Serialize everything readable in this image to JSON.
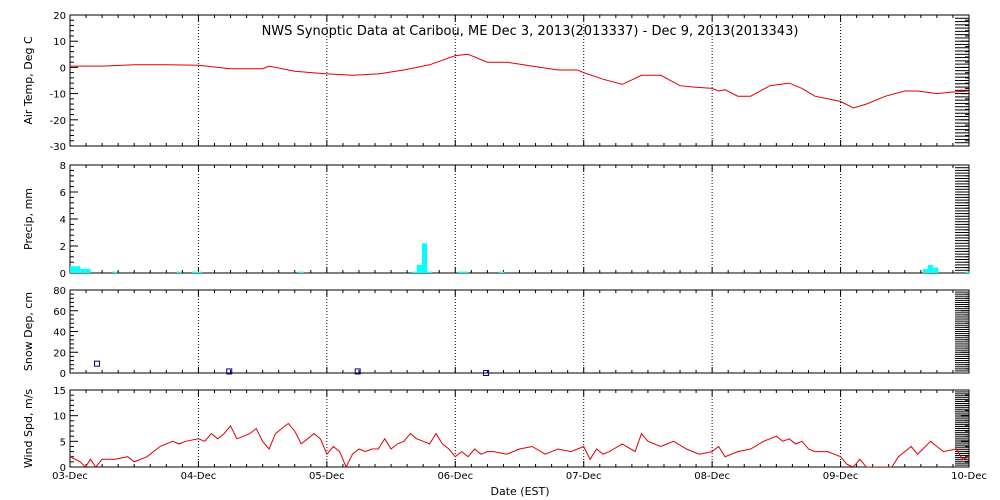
{
  "title": "NWS Synoptic Data at Caribou, ME   Dec  3, 2013(2013337) - Dec  9, 2013(2013343)",
  "xlabel": "Date (EST)",
  "x_tick_labels": [
    "03-Dec",
    "04-Dec",
    "05-Dec",
    "06-Dec",
    "07-Dec",
    "08-Dec",
    "09-Dec",
    "10-Dec"
  ],
  "colors": {
    "temperature": "#e00000",
    "precip": "#00ffff",
    "snow": "#000080",
    "wind": "#e00000",
    "frame": "#000000",
    "grid": "#000000"
  },
  "chart_data": [
    {
      "type": "line",
      "ylabel": "Air Temp, Deg C",
      "ylim": [
        -30,
        20
      ],
      "yticks": [
        -30,
        -20,
        -10,
        0,
        10,
        20
      ],
      "xlim": [
        0,
        7
      ],
      "x_unit": "days since 03-Dec 00:00 EST",
      "grid": "vertical-dotted",
      "series": [
        {
          "x": [
            0,
            0.25,
            0.5,
            0.75,
            1.0,
            1.25,
            1.5,
            1.55,
            1.75,
            1.88,
            2.0,
            2.2,
            2.4,
            2.6,
            2.8,
            3.0,
            3.1,
            3.25,
            3.4,
            3.6,
            3.8,
            3.95,
            4.0,
            4.15,
            4.3,
            4.45,
            4.6,
            4.75,
            4.85,
            5.0,
            5.05,
            5.1,
            5.2,
            5.3,
            5.45,
            5.6,
            5.7,
            5.8,
            5.9,
            6.0,
            6.1,
            6.2,
            6.35,
            6.5,
            6.6,
            6.75,
            6.85,
            7.0
          ],
          "y": [
            0.5,
            0.5,
            1,
            1,
            0.8,
            -0.5,
            -0.5,
            0.5,
            -1.5,
            -2,
            -2.5,
            -3,
            -2.5,
            -1,
            1,
            4.5,
            5,
            2,
            2,
            0.5,
            -1,
            -1,
            -2,
            -4.5,
            -6.5,
            -3,
            -3,
            -7,
            -7.5,
            -8,
            -9,
            -8.5,
            -11,
            -11,
            -7,
            -6,
            -8,
            -11,
            -12,
            -13,
            -15.5,
            -14,
            -11,
            -9,
            -9,
            -10,
            -9.5,
            -9
          ]
        }
      ]
    },
    {
      "type": "bar",
      "ylabel": "Precip, mm",
      "ylim": [
        0,
        8
      ],
      "yticks": [
        0,
        2,
        4,
        6,
        8
      ],
      "xlim": [
        0,
        7
      ],
      "x_unit": "days since 03-Dec 00:00 EST",
      "bar_width_days": 0.04,
      "grid": "vertical-dotted",
      "series": [
        {
          "x": [
            0.02,
            0.06,
            0.1,
            0.14,
            0.35,
            0.85,
            0.97,
            1.01,
            1.8,
            2.68,
            2.72,
            2.76,
            2.8,
            3.04,
            3.08,
            3.36,
            6.66,
            6.7,
            6.74,
            6.99
          ],
          "values": [
            0.5,
            0.5,
            0.3,
            0.3,
            0.1,
            0.1,
            0.1,
            0.1,
            0.1,
            0.1,
            0.6,
            2.2,
            0.1,
            0.1,
            0.1,
            0.1,
            0.3,
            0.6,
            0.4,
            0.1
          ]
        }
      ]
    },
    {
      "type": "scatter",
      "ylabel": "Snow Dep, cm",
      "ylim": [
        0,
        80
      ],
      "yticks": [
        0,
        20,
        40,
        60,
        80
      ],
      "xlim": [
        0,
        7
      ],
      "x_unit": "days since 03-Dec 00:00 EST",
      "marker": "open-square",
      "grid": "vertical-dotted",
      "series": [
        {
          "x": [
            0.21,
            1.24,
            2.24,
            3.24
          ],
          "values": [
            9,
            1.5,
            1.5,
            0
          ]
        }
      ]
    },
    {
      "type": "line",
      "ylabel": "Wind Spd, m/s",
      "ylim": [
        0,
        15
      ],
      "yticks": [
        0,
        5,
        10,
        15
      ],
      "xlim": [
        0,
        7
      ],
      "x_unit": "days since 03-Dec 00:00 EST",
      "grid": "vertical-dotted",
      "series": [
        {
          "x": [
            0,
            0.08,
            0.12,
            0.16,
            0.2,
            0.25,
            0.35,
            0.45,
            0.5,
            0.55,
            0.6,
            0.7,
            0.8,
            0.85,
            0.9,
            1.0,
            1.05,
            1.1,
            1.15,
            1.2,
            1.25,
            1.3,
            1.4,
            1.45,
            1.5,
            1.55,
            1.6,
            1.65,
            1.7,
            1.75,
            1.8,
            1.85,
            1.9,
            1.95,
            2.0,
            2.05,
            2.1,
            2.15,
            2.2,
            2.25,
            2.3,
            2.35,
            2.4,
            2.45,
            2.5,
            2.55,
            2.6,
            2.65,
            2.7,
            2.75,
            2.8,
            2.85,
            2.9,
            2.95,
            3.0,
            3.05,
            3.1,
            3.15,
            3.2,
            3.25,
            3.3,
            3.4,
            3.5,
            3.6,
            3.7,
            3.8,
            3.9,
            4.0,
            4.05,
            4.1,
            4.15,
            4.2,
            4.3,
            4.4,
            4.45,
            4.5,
            4.6,
            4.65,
            4.7,
            4.8,
            4.9,
            5.0,
            5.05,
            5.1,
            5.2,
            5.3,
            5.4,
            5.5,
            5.55,
            5.6,
            5.65,
            5.7,
            5.75,
            5.8,
            5.9,
            6.0,
            6.05,
            6.1,
            6.15,
            6.2,
            6.3,
            6.35,
            6.4,
            6.45,
            6.5,
            6.55,
            6.6,
            6.7,
            6.8,
            6.9,
            6.95,
            7.0
          ],
          "y": [
            2,
            1,
            0,
            1.5,
            0,
            1.5,
            1.5,
            2,
            1,
            1.5,
            2,
            4,
            5,
            4.5,
            5,
            5.5,
            5,
            6.5,
            5.5,
            6.5,
            8,
            5.5,
            6.5,
            7.5,
            5,
            3.5,
            6.5,
            7.5,
            8.5,
            7,
            4.5,
            5.5,
            6.5,
            5.5,
            2.5,
            4,
            3,
            0,
            2.5,
            3.5,
            3,
            3.5,
            3.5,
            5.5,
            3.5,
            4.5,
            5,
            6.5,
            5.5,
            5,
            4.5,
            6.5,
            4.5,
            3.5,
            2,
            3,
            2,
            3.5,
            2.5,
            3,
            3,
            2.5,
            3.5,
            4,
            2.5,
            3.5,
            3,
            4,
            1.5,
            3.5,
            2.5,
            3,
            4.5,
            3,
            6.5,
            5,
            4,
            4.5,
            5,
            3.5,
            2.5,
            3,
            4,
            2,
            3,
            3.5,
            5,
            6,
            5,
            5.5,
            4.5,
            5,
            3.5,
            3,
            3,
            2,
            0.5,
            0,
            1.5,
            0,
            0,
            0,
            0,
            2,
            3,
            4,
            2.5,
            5,
            3,
            3.5,
            1.5,
            2
          ]
        }
      ]
    }
  ]
}
